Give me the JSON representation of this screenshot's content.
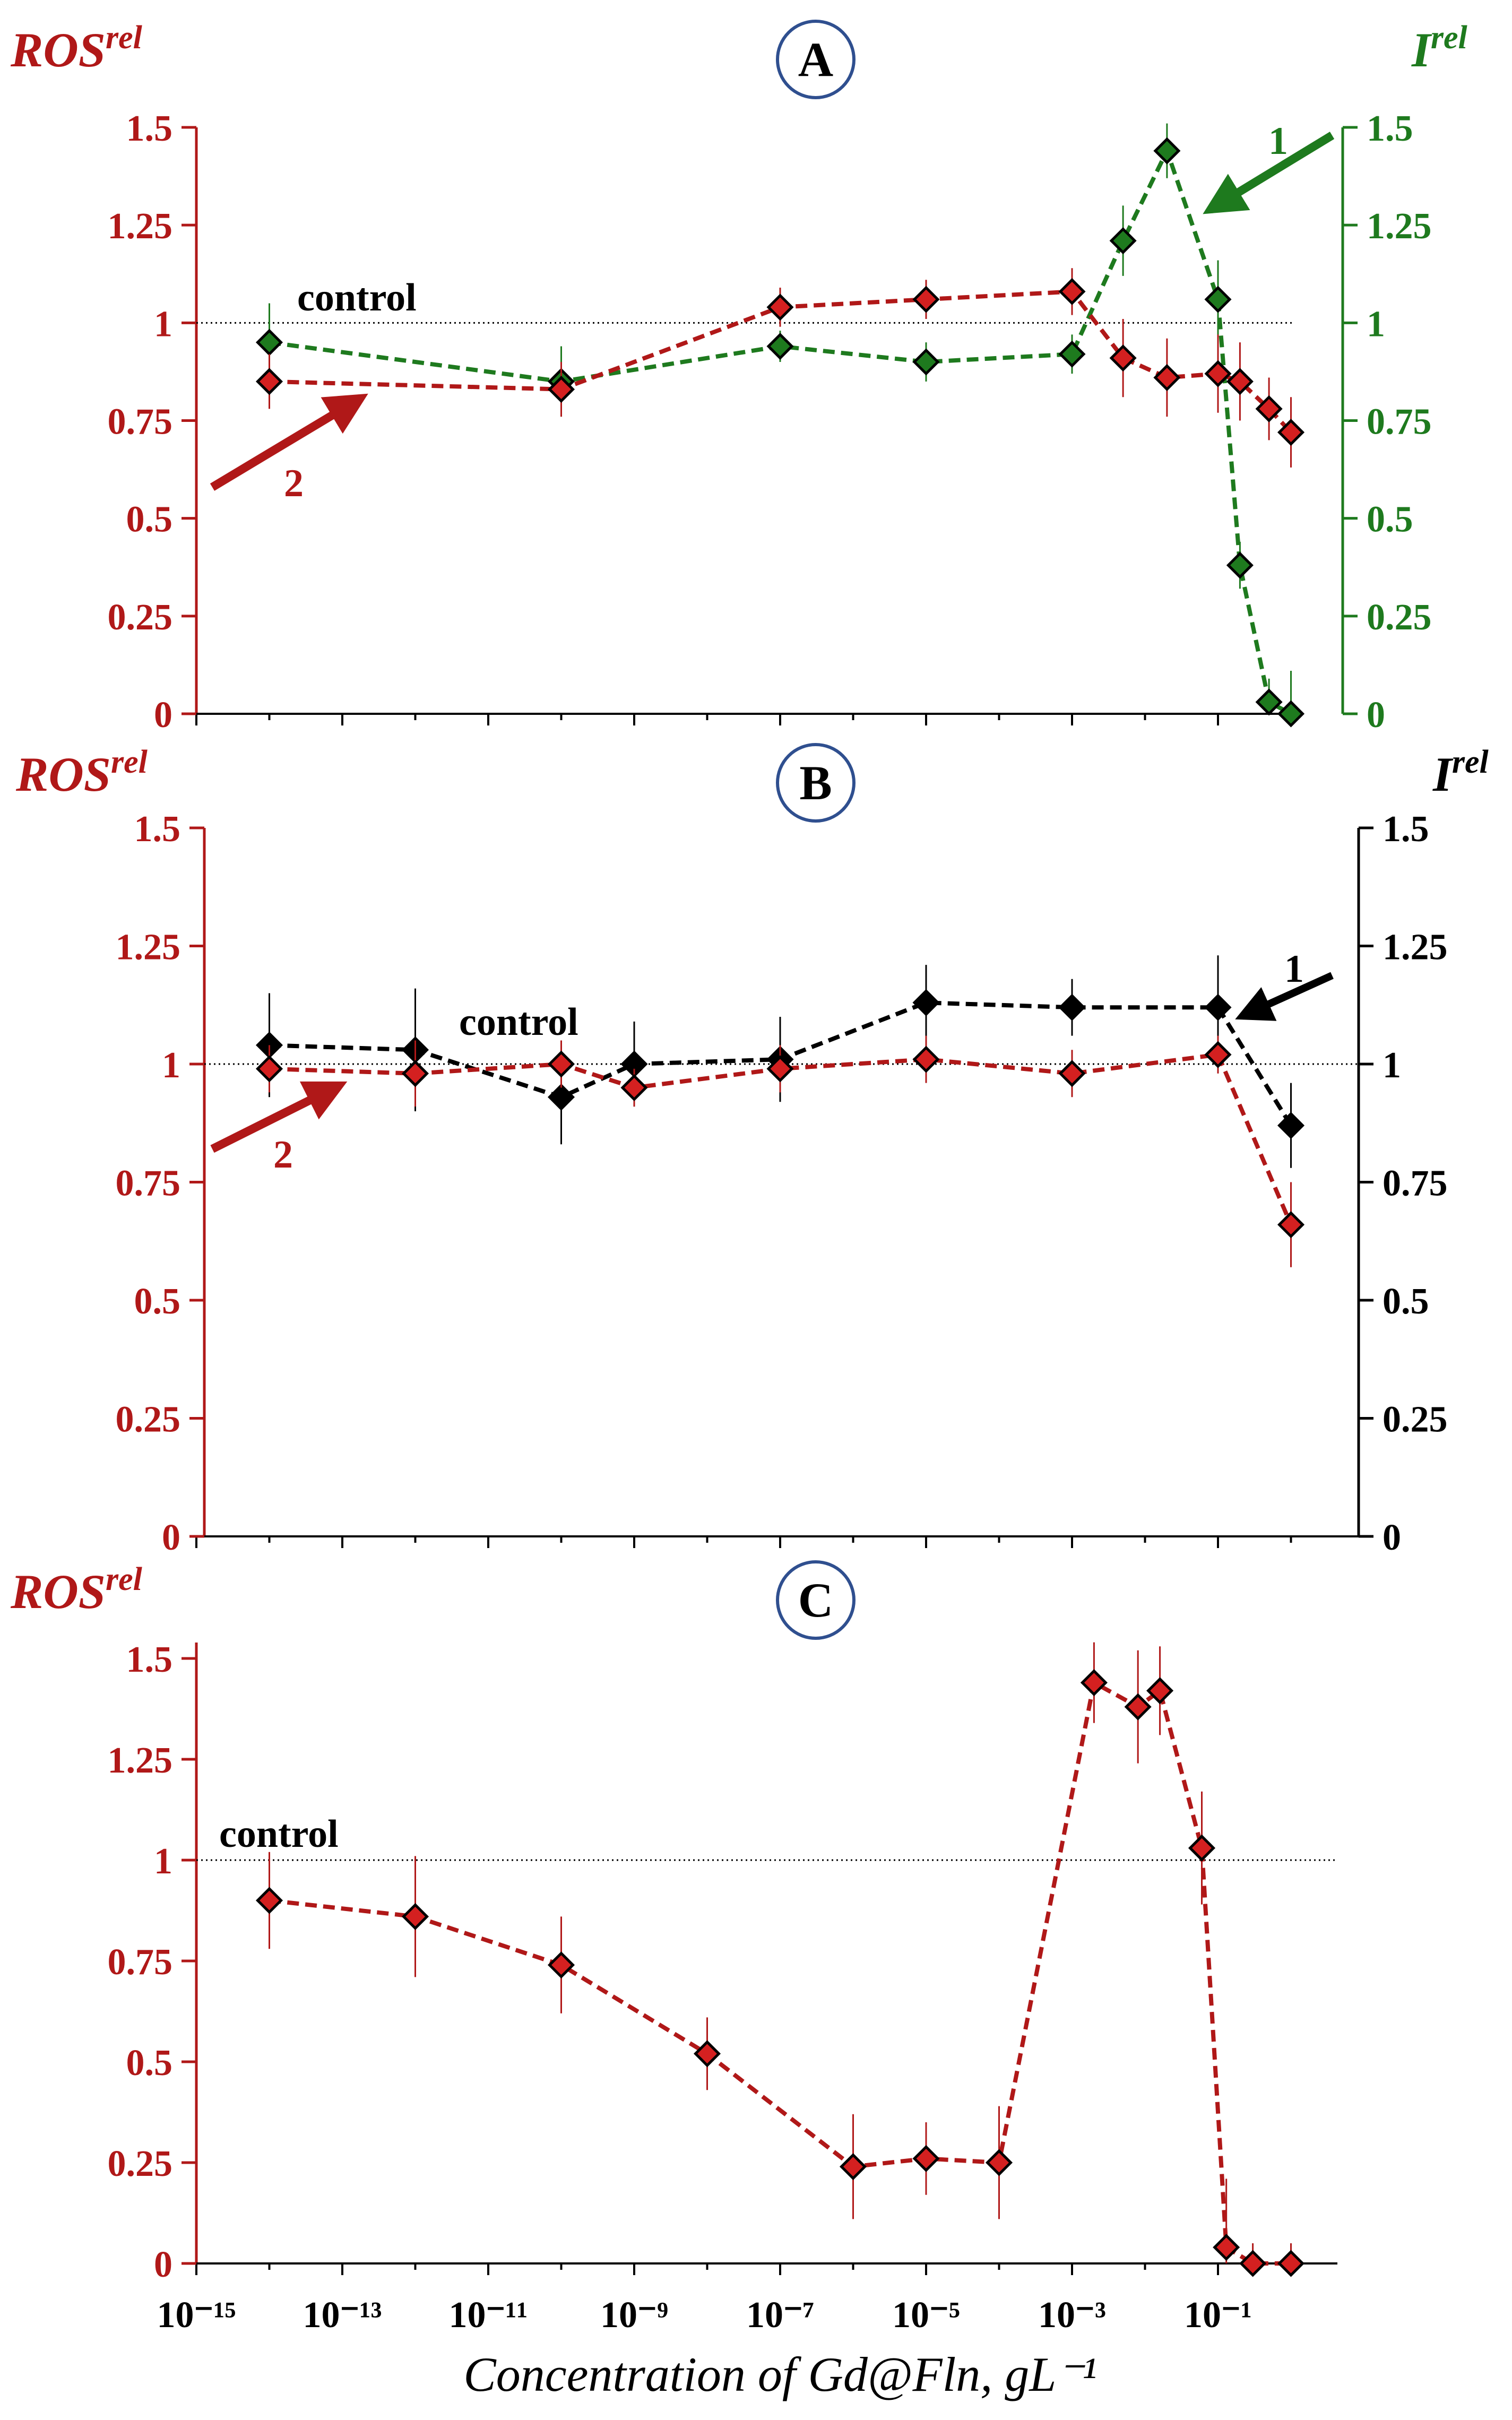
{
  "figure": {
    "xlabel": "Concentration of Gd@Fln, gL⁻¹",
    "x_tick_labels": [
      "10⁻¹⁵",
      "10⁻¹³",
      "10⁻¹¹",
      "10⁻⁹",
      "10⁻⁷",
      "10⁻⁵",
      "10⁻³",
      "10⁻¹"
    ],
    "y_tick_labels": [
      "0",
      "0.25",
      "0.5",
      "0.75",
      "1",
      "1.25",
      "1.5"
    ],
    "control_label": "control",
    "colors": {
      "ros": "#b01818",
      "ros_marker": "#d42020",
      "lum_A": "#1e7a1e",
      "lum_B": "#000000"
    }
  },
  "chart_data": [
    {
      "panel": "A",
      "type": "line",
      "x_scale": "log",
      "ylim": [
        0,
        1.5
      ],
      "left_axis": {
        "label": "ROS",
        "sup": "rel"
      },
      "right_axis": {
        "label": "I",
        "sup": "rel"
      },
      "control_value": 1,
      "arrows": [
        {
          "label": "1",
          "series": "I"
        },
        {
          "label": "2",
          "series": "ROS"
        }
      ],
      "series": [
        {
          "name": "1",
          "axis": "right",
          "color": "#1e7a1e",
          "x": [
            1e-14,
            1e-10,
            1e-07,
            1e-05,
            0.001,
            0.005,
            0.02,
            0.1,
            0.2,
            0.5,
            1
          ],
          "y": [
            0.95,
            0.85,
            0.94,
            0.9,
            0.92,
            1.21,
            1.44,
            1.06,
            0.38,
            0.03,
            0.0
          ],
          "err": [
            0.1,
            0.09,
            0.04,
            0.05,
            0.05,
            0.09,
            0.07,
            0.1,
            0.06,
            0.06,
            0.11
          ]
        },
        {
          "name": "2",
          "axis": "left",
          "color": "#b01818",
          "x": [
            1e-14,
            1e-10,
            1e-07,
            1e-05,
            0.001,
            0.005,
            0.02,
            0.1,
            0.2,
            0.5,
            1
          ],
          "y": [
            0.85,
            0.83,
            1.04,
            1.06,
            1.08,
            0.91,
            0.86,
            0.87,
            0.85,
            0.78,
            0.72
          ],
          "err": [
            0.07,
            0.07,
            0.05,
            0.05,
            0.06,
            0.1,
            0.1,
            0.1,
            0.1,
            0.08,
            0.09
          ]
        }
      ]
    },
    {
      "panel": "B",
      "type": "line",
      "x_scale": "log",
      "ylim": [
        0,
        1.5
      ],
      "left_axis": {
        "label": "ROS",
        "sup": "rel"
      },
      "right_axis": {
        "label": "I",
        "sup": "rel"
      },
      "control_value": 1,
      "arrows": [
        {
          "label": "1",
          "series": "I"
        },
        {
          "label": "2",
          "series": "ROS"
        }
      ],
      "series": [
        {
          "name": "1",
          "axis": "right",
          "color": "#000000",
          "x": [
            1e-14,
            1e-12,
            1e-10,
            1e-09,
            1e-07,
            1e-05,
            0.001,
            0.1,
            1
          ],
          "y": [
            1.04,
            1.03,
            0.93,
            1.0,
            1.01,
            1.13,
            1.12,
            1.12,
            0.87
          ],
          "err": [
            0.11,
            0.13,
            0.1,
            0.09,
            0.09,
            0.08,
            0.06,
            0.11,
            0.09
          ]
        },
        {
          "name": "2",
          "axis": "left",
          "color": "#b01818",
          "x": [
            1e-14,
            1e-12,
            1e-10,
            1e-09,
            1e-07,
            1e-05,
            0.001,
            0.1,
            1
          ],
          "y": [
            0.99,
            0.98,
            1.0,
            0.95,
            0.99,
            1.01,
            0.98,
            1.02,
            0.66
          ],
          "err": [
            0.05,
            0.07,
            0.05,
            0.04,
            0.05,
            0.05,
            0.05,
            0.04,
            0.09
          ]
        }
      ]
    },
    {
      "panel": "C",
      "type": "line",
      "x_scale": "log",
      "ylim": [
        0,
        1.5
      ],
      "left_axis": {
        "label": "ROS",
        "sup": "rel"
      },
      "control_value": 1,
      "series": [
        {
          "axis": "left",
          "color": "#b01818",
          "x": [
            1e-14,
            1e-12,
            1e-10,
            1e-08,
            1e-06,
            1e-05,
            0.0001,
            0.002,
            0.008,
            0.016,
            0.06,
            0.13,
            0.3,
            1
          ],
          "y": [
            0.9,
            0.86,
            0.74,
            0.52,
            0.24,
            0.26,
            0.25,
            1.44,
            1.38,
            1.42,
            1.03,
            0.04,
            0.0,
            0.0
          ],
          "err": [
            0.12,
            0.15,
            0.12,
            0.09,
            0.13,
            0.09,
            0.14,
            0.1,
            0.14,
            0.11,
            0.14,
            0.17,
            0.05,
            0.05
          ]
        }
      ]
    }
  ]
}
